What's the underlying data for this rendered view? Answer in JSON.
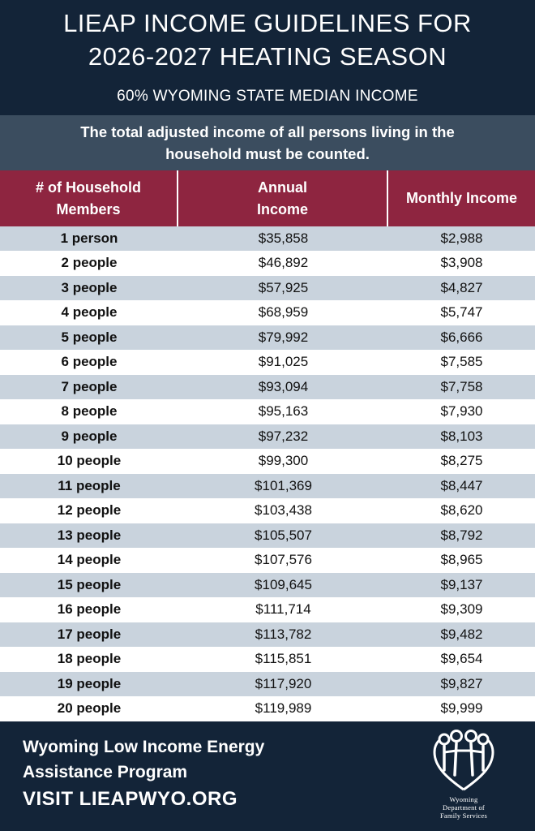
{
  "header": {
    "title_line1": "LIEAP INCOME GUIDELINES FOR",
    "title_line2": "2026-2027 HEATING SEASON",
    "subtitle": "60% WYOMING STATE MEDIAN INCOME"
  },
  "notice": {
    "line1": "The total adjusted income of all persons living in the",
    "line2": "household must be counted."
  },
  "table": {
    "headers": {
      "members_line1": "# of Household",
      "members_line2": "Members",
      "annual_line1": "Annual",
      "annual_line2": "Income",
      "monthly": "Monthly Income"
    },
    "rows": [
      {
        "members": "1 person",
        "annual": "$35,858",
        "monthly": "$2,988"
      },
      {
        "members": "2 people",
        "annual": "$46,892",
        "monthly": "$3,908"
      },
      {
        "members": "3 people",
        "annual": "$57,925",
        "monthly": "$4,827"
      },
      {
        "members": "4 people",
        "annual": "$68,959",
        "monthly": "$5,747"
      },
      {
        "members": "5 people",
        "annual": "$79,992",
        "monthly": "$6,666"
      },
      {
        "members": "6 people",
        "annual": "$91,025",
        "monthly": "$7,585"
      },
      {
        "members": "7 people",
        "annual": "$93,094",
        "monthly": "$7,758"
      },
      {
        "members": "8 people",
        "annual": "$95,163",
        "monthly": "$7,930"
      },
      {
        "members": "9 people",
        "annual": "$97,232",
        "monthly": "$8,103"
      },
      {
        "members": "10 people",
        "annual": "$99,300",
        "monthly": "$8,275"
      },
      {
        "members": "11 people",
        "annual": "$101,369",
        "monthly": "$8,447"
      },
      {
        "members": "12 people",
        "annual": "$103,438",
        "monthly": "$8,620"
      },
      {
        "members": "13 people",
        "annual": "$105,507",
        "monthly": "$8,792"
      },
      {
        "members": "14 people",
        "annual": "$107,576",
        "monthly": "$8,965"
      },
      {
        "members": "15 people",
        "annual": "$109,645",
        "monthly": "$9,137"
      },
      {
        "members": "16 people",
        "annual": "$111,714",
        "monthly": "$9,309"
      },
      {
        "members": "17 people",
        "annual": "$113,782",
        "monthly": "$9,482"
      },
      {
        "members": "18 people",
        "annual": "$115,851",
        "monthly": "$9,654"
      },
      {
        "members": "19 people",
        "annual": "$117,920",
        "monthly": "$9,827"
      },
      {
        "members": "20 people",
        "annual": "$119,989",
        "monthly": "$9,999"
      }
    ]
  },
  "footer": {
    "program_line1": "Wyoming Low Income Energy",
    "program_line2": "Assistance Program",
    "visit": "VISIT LIEAPWYO.ORG",
    "logo_line1": "Wyoming",
    "logo_line2": "Department of",
    "logo_line3": "Family Services",
    "logo_icon": "family-heart-icon"
  },
  "colors": {
    "navy": "#132438",
    "slate": "#3b4d5f",
    "maroon": "#8e2540",
    "row_shade": "#c9d3dd"
  }
}
